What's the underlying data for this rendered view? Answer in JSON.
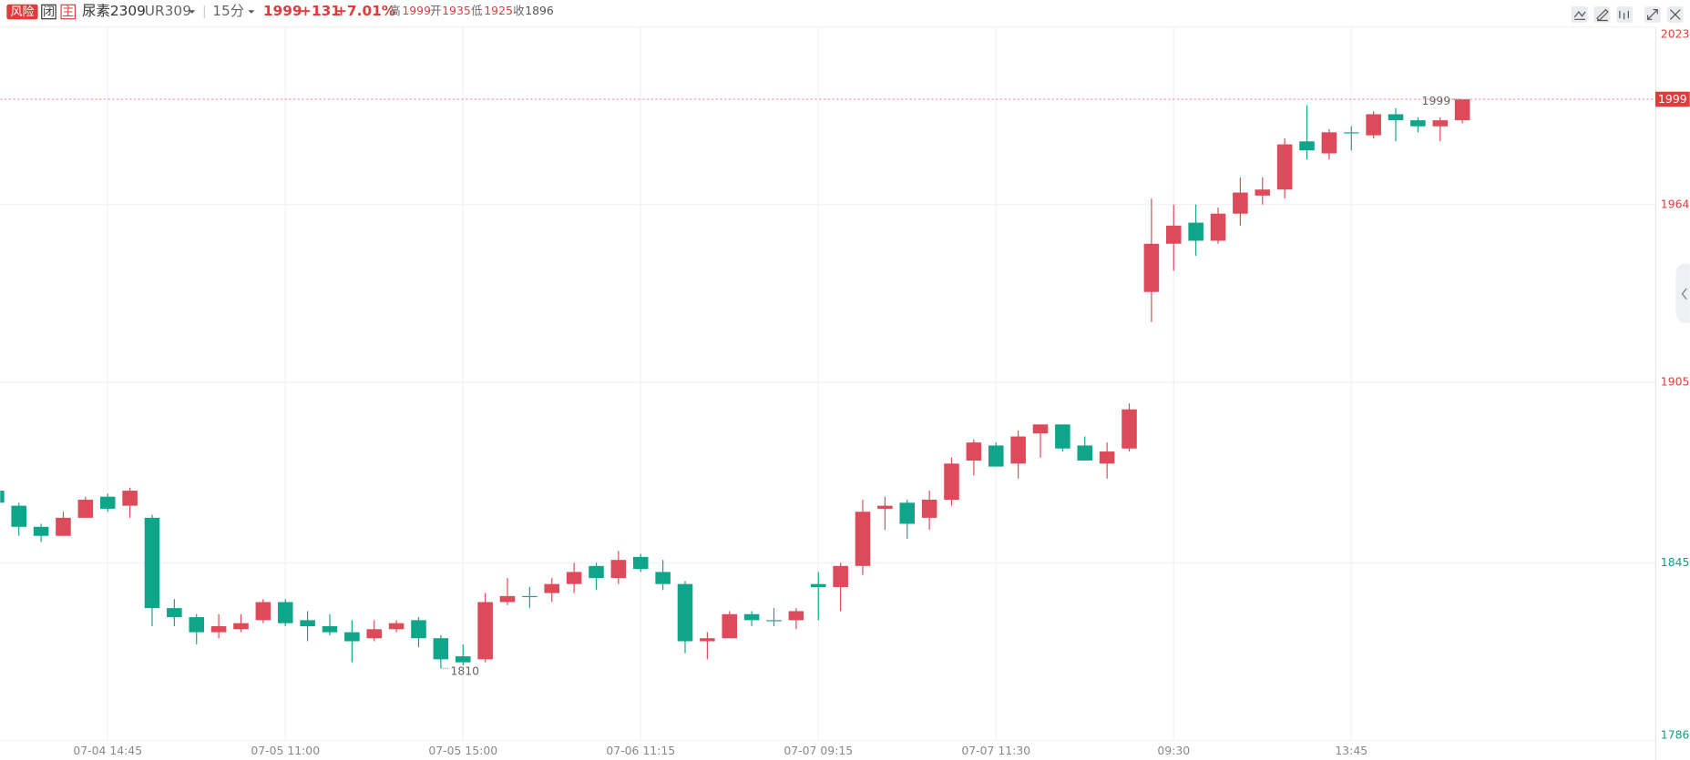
{
  "header": {
    "badges": [
      "风险",
      "闭",
      "主"
    ],
    "name": "尿素2309",
    "code": "UR309",
    "interval": "15分",
    "price": "1999",
    "change": "+131",
    "change_pct": "+7.01%",
    "stats": [
      {
        "label": "高",
        "value": "1999"
      },
      {
        "label": "开",
        "value": "1935"
      },
      {
        "label": "低",
        "value": "1925"
      },
      {
        "label": "收",
        "value": "1896"
      }
    ]
  },
  "chart_data": {
    "type": "candlestick",
    "categories": [
      null,
      null,
      null,
      null,
      null,
      "07-04 14:45",
      null,
      null,
      null,
      null,
      null,
      null,
      null,
      "07-05 11:00",
      null,
      null,
      null,
      null,
      null,
      null,
      null,
      "07-05 15:00",
      null,
      null,
      null,
      null,
      null,
      null,
      null,
      "07-06 11:15",
      null,
      null,
      null,
      null,
      null,
      null,
      null,
      "07-07 09:15",
      null,
      null,
      null,
      null,
      null,
      null,
      null,
      "07-07 11:30",
      null,
      null,
      null,
      null,
      null,
      null,
      null,
      "09:30",
      null,
      null,
      null,
      null,
      null,
      null,
      null,
      "13:45",
      null,
      null,
      null,
      null,
      null
    ],
    "open": [
      1869,
      1864,
      1857,
      1854,
      1860,
      1867,
      1864,
      1860,
      1830,
      1827,
      1822,
      1823,
      1826,
      1832,
      1826,
      1824,
      1822,
      1820,
      1823,
      1826,
      1820,
      1814,
      1813,
      1832,
      1834,
      1835,
      1838,
      1844,
      1840,
      1847,
      1842,
      1838,
      1819,
      1820,
      1828,
      1826,
      1826,
      1838,
      1837,
      1844,
      1863,
      1865,
      1860,
      1866,
      1879,
      1884,
      1878,
      1888,
      1891,
      1884,
      1878,
      1883,
      1935,
      1951,
      1958,
      1952,
      1961,
      1967,
      1969,
      1985,
      1981,
      1988,
      1987,
      1994,
      1992,
      1990,
      1992
    ],
    "high": [
      1870,
      1865,
      1858,
      1862,
      1867,
      1868,
      1870,
      1861,
      1833,
      1828,
      1828,
      1828,
      1833,
      1833,
      1829,
      1828,
      1826,
      1826,
      1826,
      1827,
      1821,
      1818,
      1835,
      1840,
      1837,
      1840,
      1845,
      1845,
      1849,
      1848,
      1846,
      1839,
      1822,
      1829,
      1829,
      1830,
      1830,
      1842,
      1845,
      1866,
      1867,
      1866,
      1869,
      1880,
      1886,
      1885,
      1889,
      1891,
      1891,
      1887,
      1885,
      1898,
      1966,
      1964,
      1964,
      1963,
      1973,
      1973,
      1986,
      1997,
      1989,
      1990,
      1995,
      1996,
      1993,
      1993,
      1999
    ],
    "low": [
      1865,
      1854,
      1852,
      1854,
      1860,
      1862,
      1860,
      1824,
      1824,
      1818,
      1820,
      1822,
      1825,
      1824,
      1819,
      1821,
      1812,
      1819,
      1822,
      1817,
      1810,
      1811,
      1812,
      1831,
      1830,
      1832,
      1835,
      1836,
      1838,
      1842,
      1836,
      1815,
      1813,
      1820,
      1824,
      1824,
      1823,
      1826,
      1829,
      1841,
      1856,
      1853,
      1856,
      1864,
      1874,
      1877,
      1873,
      1880,
      1882,
      1879,
      1873,
      1882,
      1925,
      1942,
      1947,
      1951,
      1957,
      1964,
      1966,
      1979,
      1979,
      1982,
      1986,
      1985,
      1988,
      1985,
      1991
    ],
    "close": [
      1865,
      1857,
      1854,
      1860,
      1866,
      1863,
      1869,
      1830,
      1827,
      1822,
      1824,
      1825,
      1832,
      1825,
      1824,
      1822,
      1819,
      1823,
      1825,
      1820,
      1813,
      1812,
      1832,
      1834,
      1834,
      1838,
      1842,
      1840,
      1846,
      1843,
      1838,
      1819,
      1820,
      1828,
      1826,
      1826,
      1829,
      1837,
      1844,
      1862,
      1864,
      1858,
      1866,
      1878,
      1885,
      1877,
      1887,
      1891,
      1883,
      1879,
      1882,
      1896,
      1951,
      1957,
      1952,
      1961,
      1968,
      1969,
      1984,
      1982,
      1988,
      1988,
      1994,
      1992,
      1990,
      1992,
      1999
    ],
    "ylim": [
      1786,
      2023
    ],
    "yticks": [
      1786,
      1845,
      1905,
      1964,
      2023
    ],
    "up_color": "#dd4a5a",
    "down_color": "#0fa58a",
    "grid": true
  }
}
